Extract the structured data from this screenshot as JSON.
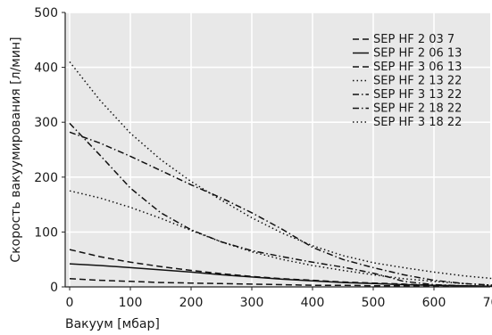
{
  "chart_data": {
    "type": "line",
    "title": "",
    "xlabel": "Вакуум [мбар]",
    "ylabel": "Скорость вакуумирования [л/мин]",
    "xlim": [
      0,
      700
    ],
    "ylim": [
      0,
      500
    ],
    "xticks": [
      0,
      100,
      200,
      300,
      400,
      500,
      600,
      700
    ],
    "yticks": [
      0,
      100,
      200,
      300,
      400,
      500
    ],
    "grid": true,
    "legend_position": "top-right",
    "background": "#e8e8e8",
    "series": [
      {
        "name": "SEP HF 2 03 7",
        "style": "dashed",
        "color": "#111111",
        "points": [
          [
            0,
            15
          ],
          [
            50,
            12
          ],
          [
            100,
            10
          ],
          [
            150,
            8
          ],
          [
            200,
            7
          ],
          [
            250,
            6
          ],
          [
            300,
            5
          ],
          [
            350,
            4
          ],
          [
            400,
            3
          ],
          [
            450,
            3
          ],
          [
            500,
            2
          ],
          [
            550,
            2
          ],
          [
            600,
            1
          ],
          [
            650,
            1
          ],
          [
            700,
            1
          ]
        ]
      },
      {
        "name": "SEP HF 2 06 13",
        "style": "solid",
        "color": "#111111",
        "points": [
          [
            0,
            42
          ],
          [
            50,
            39
          ],
          [
            100,
            35
          ],
          [
            150,
            31
          ],
          [
            200,
            27
          ],
          [
            250,
            22
          ],
          [
            300,
            18
          ],
          [
            350,
            14
          ],
          [
            400,
            11
          ],
          [
            450,
            8
          ],
          [
            500,
            6
          ],
          [
            550,
            4
          ],
          [
            600,
            3
          ],
          [
            650,
            2
          ],
          [
            700,
            1
          ]
        ]
      },
      {
        "name": "SEP HF 3 06 13",
        "style": "dashed",
        "color": "#111111",
        "points": [
          [
            0,
            68
          ],
          [
            50,
            55
          ],
          [
            100,
            45
          ],
          [
            150,
            37
          ],
          [
            200,
            30
          ],
          [
            250,
            24
          ],
          [
            300,
            19
          ],
          [
            350,
            15
          ],
          [
            400,
            12
          ],
          [
            450,
            9
          ],
          [
            500,
            7
          ],
          [
            550,
            5
          ],
          [
            600,
            3
          ],
          [
            650,
            2
          ],
          [
            700,
            1
          ]
        ]
      },
      {
        "name": "SEP HF 2 13 22",
        "style": "dotted",
        "color": "#111111",
        "points": [
          [
            0,
            175
          ],
          [
            50,
            162
          ],
          [
            100,
            145
          ],
          [
            150,
            125
          ],
          [
            200,
            103
          ],
          [
            250,
            82
          ],
          [
            300,
            64
          ],
          [
            350,
            50
          ],
          [
            400,
            39
          ],
          [
            450,
            30
          ],
          [
            500,
            22
          ],
          [
            550,
            15
          ],
          [
            600,
            10
          ],
          [
            650,
            6
          ],
          [
            700,
            3
          ]
        ]
      },
      {
        "name": "SEP HF 3 13 22",
        "style": "dash-dot",
        "color": "#111111",
        "points": [
          [
            0,
            298
          ],
          [
            50,
            240
          ],
          [
            100,
            180
          ],
          [
            150,
            135
          ],
          [
            200,
            104
          ],
          [
            250,
            82
          ],
          [
            300,
            66
          ],
          [
            350,
            55
          ],
          [
            400,
            45
          ],
          [
            450,
            36
          ],
          [
            500,
            25
          ],
          [
            525,
            18
          ],
          [
            550,
            10
          ],
          [
            600,
            4
          ],
          [
            650,
            2
          ],
          [
            700,
            1
          ]
        ]
      },
      {
        "name": "SEP HF 2 18 22",
        "style": "dash-dot",
        "color": "#111111",
        "points": [
          [
            0,
            282
          ],
          [
            50,
            262
          ],
          [
            100,
            238
          ],
          [
            150,
            212
          ],
          [
            200,
            186
          ],
          [
            250,
            162
          ],
          [
            300,
            135
          ],
          [
            350,
            105
          ],
          [
            400,
            72
          ],
          [
            450,
            50
          ],
          [
            500,
            35
          ],
          [
            550,
            22
          ],
          [
            600,
            12
          ],
          [
            650,
            6
          ],
          [
            700,
            3
          ]
        ]
      },
      {
        "name": "SEP HF 3 18 22",
        "style": "dotted",
        "color": "#111111",
        "points": [
          [
            0,
            410
          ],
          [
            50,
            340
          ],
          [
            100,
            280
          ],
          [
            150,
            232
          ],
          [
            200,
            192
          ],
          [
            250,
            158
          ],
          [
            300,
            126
          ],
          [
            350,
            98
          ],
          [
            400,
            75
          ],
          [
            450,
            57
          ],
          [
            500,
            44
          ],
          [
            550,
            35
          ],
          [
            600,
            27
          ],
          [
            650,
            20
          ],
          [
            700,
            15
          ]
        ]
      }
    ]
  }
}
